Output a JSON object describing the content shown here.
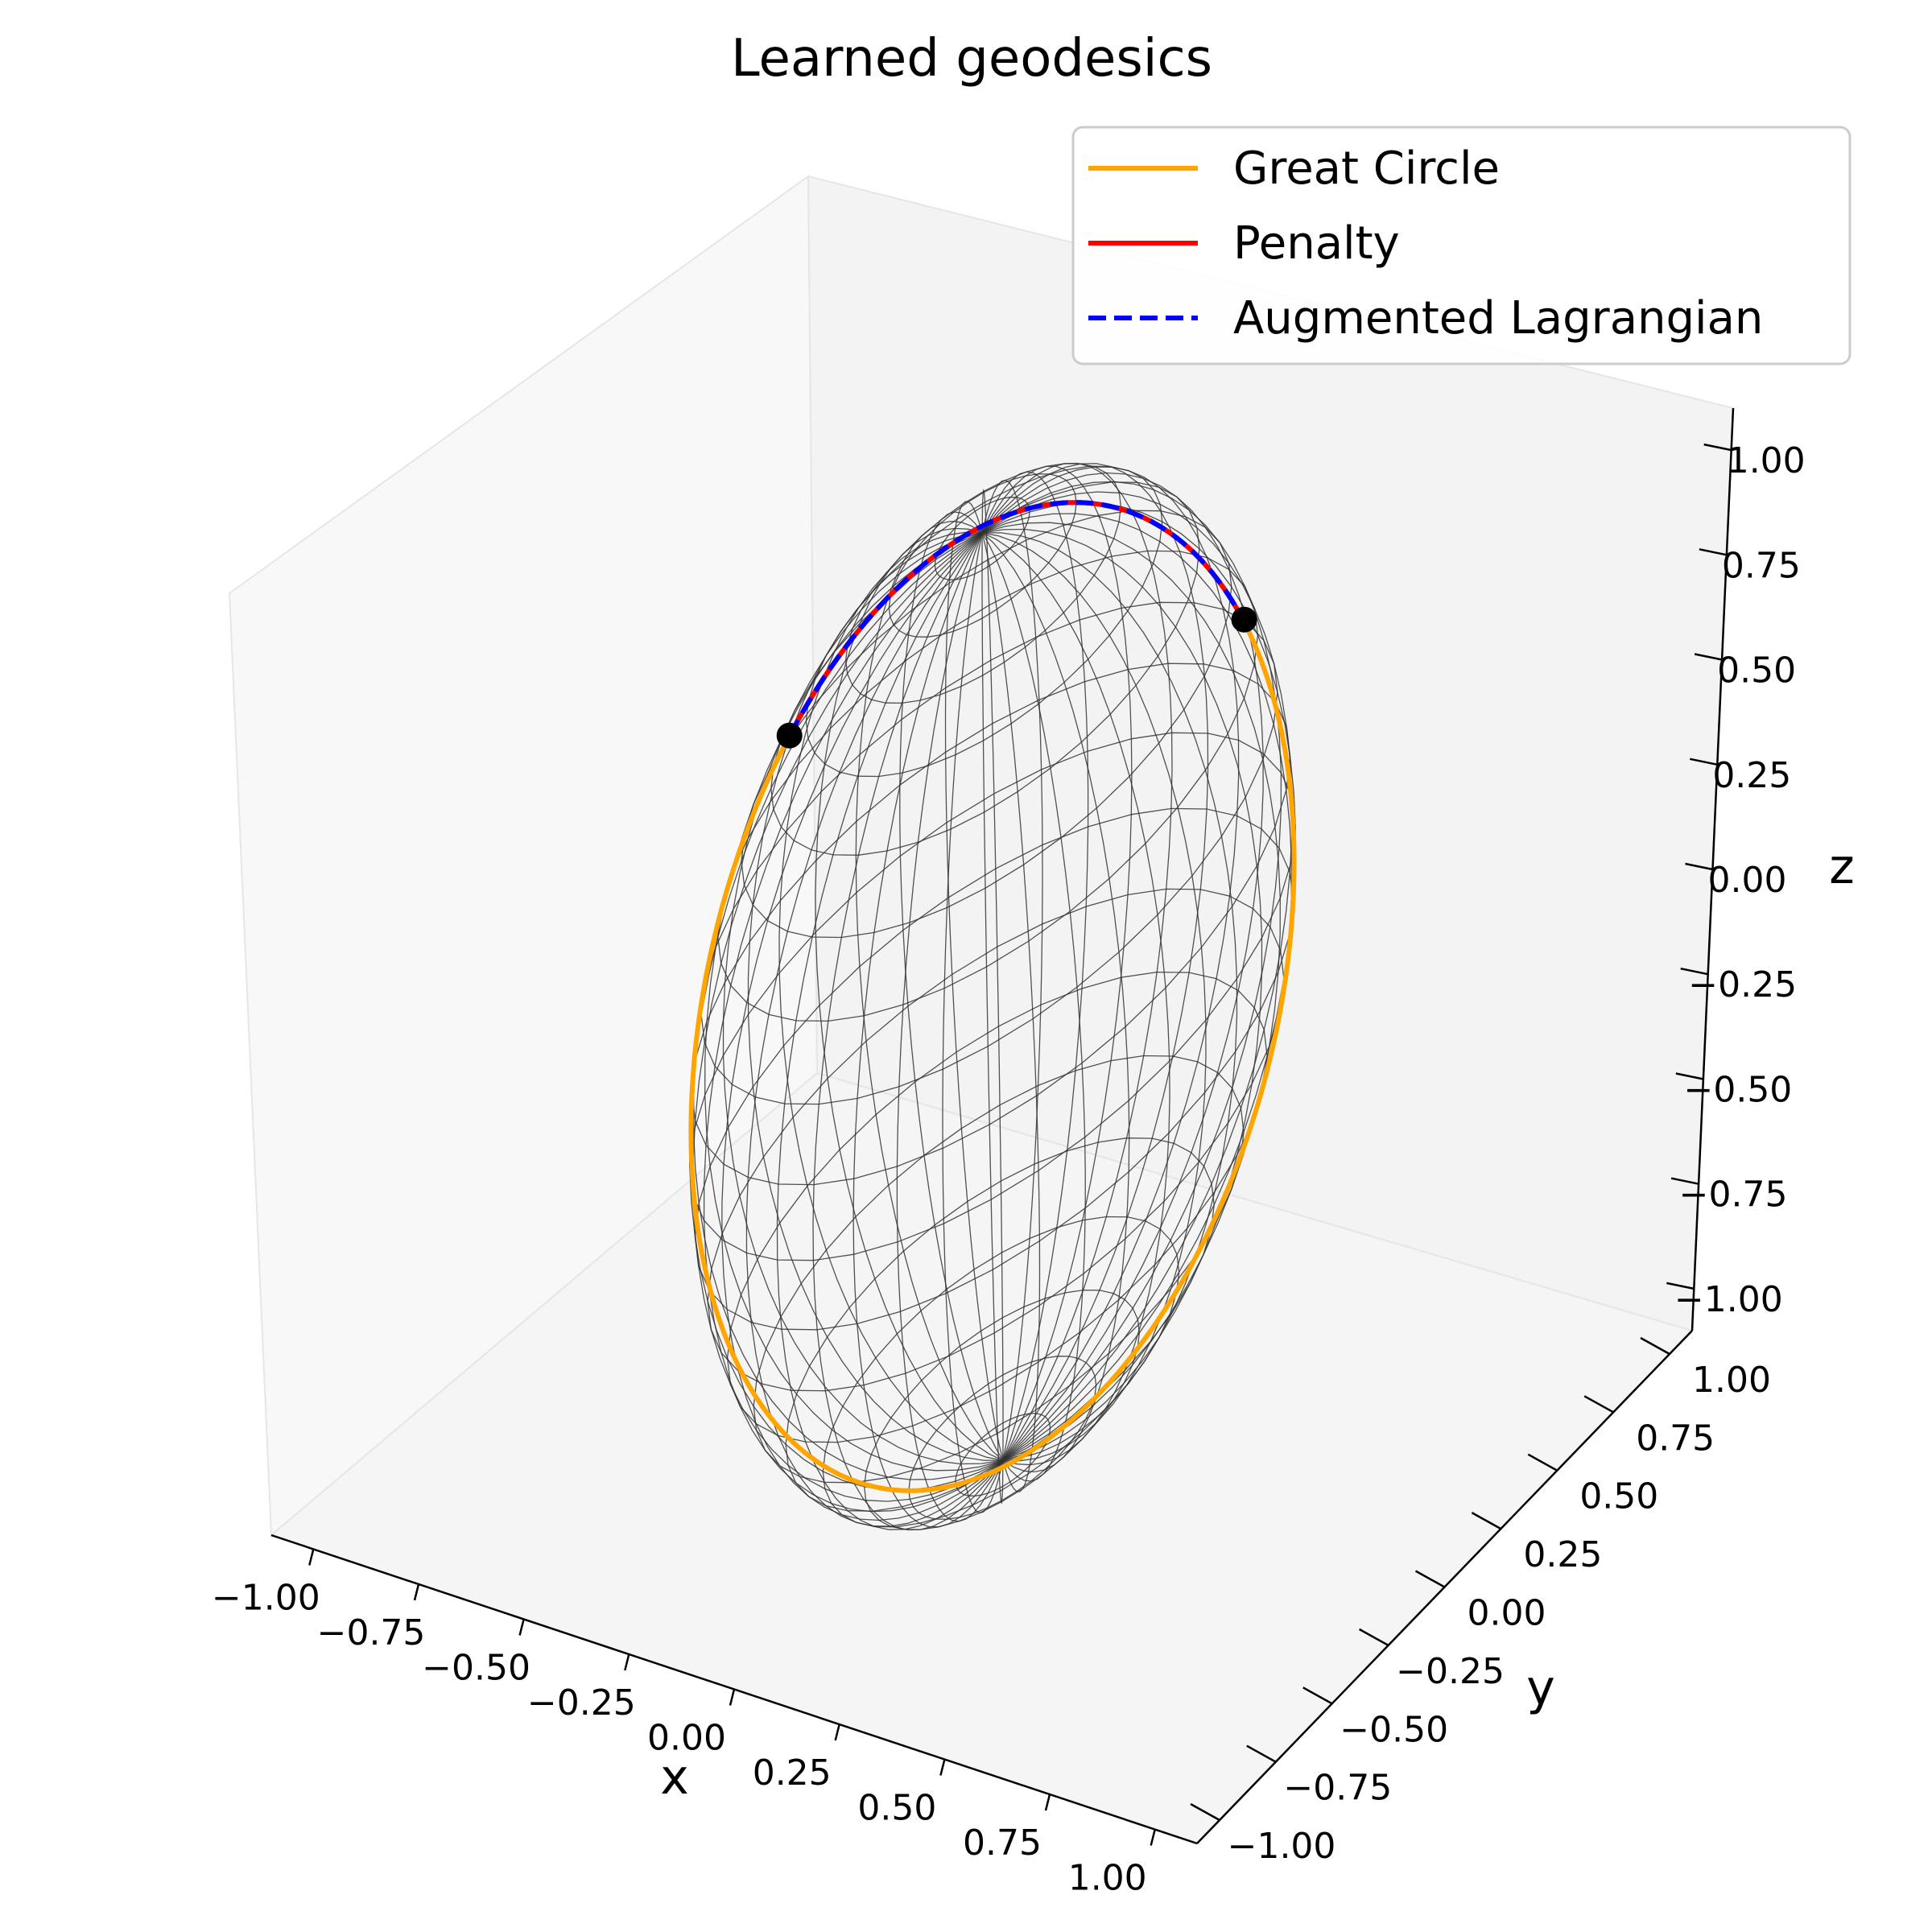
{
  "chart_data": {
    "type": "line",
    "projection": "3d",
    "title": "Learned geodesics",
    "xlabel": "x",
    "ylabel": "y",
    "zlabel": "z",
    "xlim": [
      -1.1,
      1.1
    ],
    "ylim": [
      -1.1,
      1.1
    ],
    "zlim": [
      -1.1,
      1.1
    ],
    "xticks": [
      -1.0,
      -0.75,
      -0.5,
      -0.25,
      0.0,
      0.25,
      0.5,
      0.75,
      1.0
    ],
    "yticks": [
      -1.0,
      -0.75,
      -0.5,
      -0.25,
      0.0,
      0.25,
      0.5,
      0.75,
      1.0
    ],
    "zticks": [
      -1.0,
      -0.75,
      -0.5,
      -0.25,
      0.0,
      0.25,
      0.5,
      0.75,
      1.0
    ],
    "xtick_labels": [
      "−1.00",
      "−0.75",
      "−0.50",
      "−0.25",
      "0.00",
      "0.25",
      "0.50",
      "0.75",
      "1.00"
    ],
    "ytick_labels": [
      "−1.00",
      "−0.75",
      "−0.50",
      "−0.25",
      "0.00",
      "0.25",
      "0.50",
      "0.75",
      "1.00"
    ],
    "ztick_labels": [
      "−1.00",
      "−0.75",
      "−0.50",
      "−0.25",
      "0.00",
      "0.25",
      "0.50",
      "0.75",
      "1.00"
    ],
    "surface": {
      "type": "wireframe-sphere",
      "radius": 1.0,
      "color": "#333333"
    },
    "endpoints": [
      {
        "x": -0.45,
        "y": -0.47,
        "z": 0.76
      },
      {
        "x": 0.55,
        "y": 0.65,
        "z": 0.53
      }
    ],
    "series": [
      {
        "name": "Great Circle",
        "color": "#FFA500",
        "style": "solid",
        "path": "full-great-circle-through-endpoints"
      },
      {
        "name": "Penalty",
        "color": "#FF0000",
        "style": "solid",
        "path": "short-arc-between-endpoints"
      },
      {
        "name": "Augmented Lagrangian",
        "color": "#0000FF",
        "style": "dashed",
        "path": "short-arc-between-endpoints"
      }
    ],
    "legend_position": "top-right",
    "grid": false
  }
}
